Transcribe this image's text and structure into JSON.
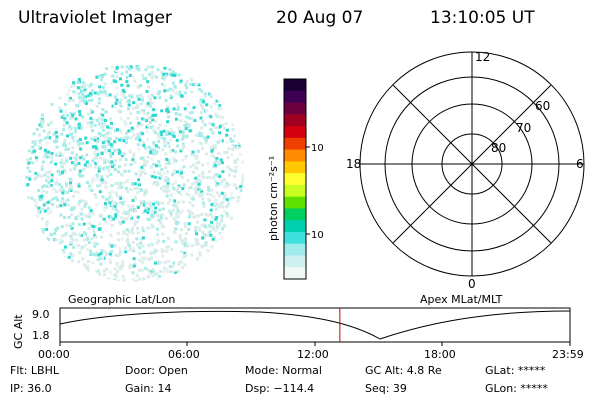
{
  "header": {
    "instrument": "Ultraviolet Imager",
    "date": "20 Aug 07",
    "time": "13:10:05 UT"
  },
  "imager": {
    "colors": {
      "speckle_primary": "#2ed8d0",
      "speckle_secondary": "#a8ece8",
      "speckle_faint": "#d8ecea",
      "speckle_pale": "#e8f2f0"
    }
  },
  "colorbar": {
    "unit_label": "photon cm⁻²s⁻¹",
    "ticks": [
      "100",
      "10"
    ],
    "colors": [
      "#1a0033",
      "#3d0055",
      "#6a0040",
      "#a00020",
      "#d40010",
      "#f04000",
      "#ff8c00",
      "#ffc800",
      "#ffff30",
      "#c8ff20",
      "#60e000",
      "#00d060",
      "#00d0b0",
      "#40e0e0",
      "#a0ecec",
      "#d0f0f0",
      "#f0f8f8"
    ]
  },
  "polar": {
    "mlt_labels": {
      "top": "12",
      "bottom": "0",
      "left": "18",
      "right": "6"
    },
    "lat_labels": [
      "60",
      "70",
      "80"
    ]
  },
  "altplot": {
    "left_title": "Geographic Lat/Lon",
    "right_title": "Apex MLat/MLT",
    "ylabel": "GC Alt",
    "y_ticks": [
      "9.0",
      "1.8"
    ],
    "x_ticks": [
      "00:00",
      "06:00",
      "12:00",
      "18:00",
      "23:59"
    ],
    "marker_time_hours": 13.17,
    "marker_color": "#cc0000"
  },
  "status": {
    "row1": {
      "filter": "Flt: LBHL",
      "door": "Door: Open",
      "mode": "Mode: Normal",
      "gc_alt": "GC Alt: 4.8 Re",
      "glat": "GLat: *****"
    },
    "row2": {
      "ip": "IP: 36.0",
      "gain": "Gain: 14",
      "dsp": "Dsp: −114.4",
      "seq": "Seq: 39",
      "glon": "GLon: *****"
    }
  }
}
